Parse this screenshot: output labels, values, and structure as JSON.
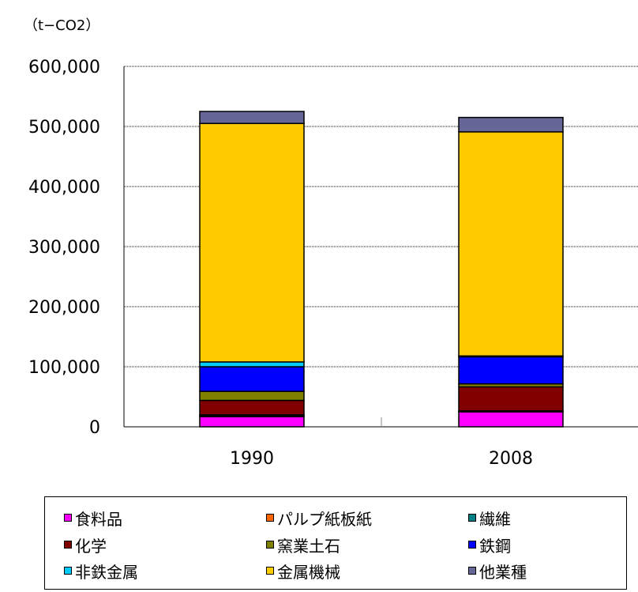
{
  "chart_data": {
    "type": "bar",
    "stacked": true,
    "unit_label": "（t−CO2）",
    "categories": [
      "1990",
      "2008"
    ],
    "ylim": [
      0,
      600000
    ],
    "yticks": [
      0,
      100000,
      200000,
      300000,
      400000,
      500000,
      600000
    ],
    "ytick_labels": [
      "0",
      "100,000",
      "200,000",
      "300,000",
      "400,000",
      "500,000",
      "600,000"
    ],
    "grid": true,
    "legend_position": "bottom",
    "series": [
      {
        "name": "食料品",
        "color": "#ff00ff",
        "values": [
          17000,
          25000
        ]
      },
      {
        "name": "パルプ紙板紙",
        "color": "#ff6600",
        "values": [
          2000,
          1000
        ]
      },
      {
        "name": "繊維",
        "color": "#008080",
        "values": [
          1000,
          500
        ]
      },
      {
        "name": "化学",
        "color": "#800000",
        "values": [
          24000,
          40000
        ]
      },
      {
        "name": "窯業土石",
        "color": "#808000",
        "values": [
          15000,
          5000
        ]
      },
      {
        "name": "鉄鋼",
        "color": "#0000ff",
        "values": [
          41000,
          45000
        ]
      },
      {
        "name": "非鉄金属",
        "color": "#00ccff",
        "values": [
          8000,
          1500
        ]
      },
      {
        "name": "金属機械",
        "color": "#ffcc00",
        "values": [
          397000,
          373000
        ]
      },
      {
        "name": "他業種",
        "color": "#666699",
        "values": [
          20000,
          24000
        ]
      }
    ]
  }
}
